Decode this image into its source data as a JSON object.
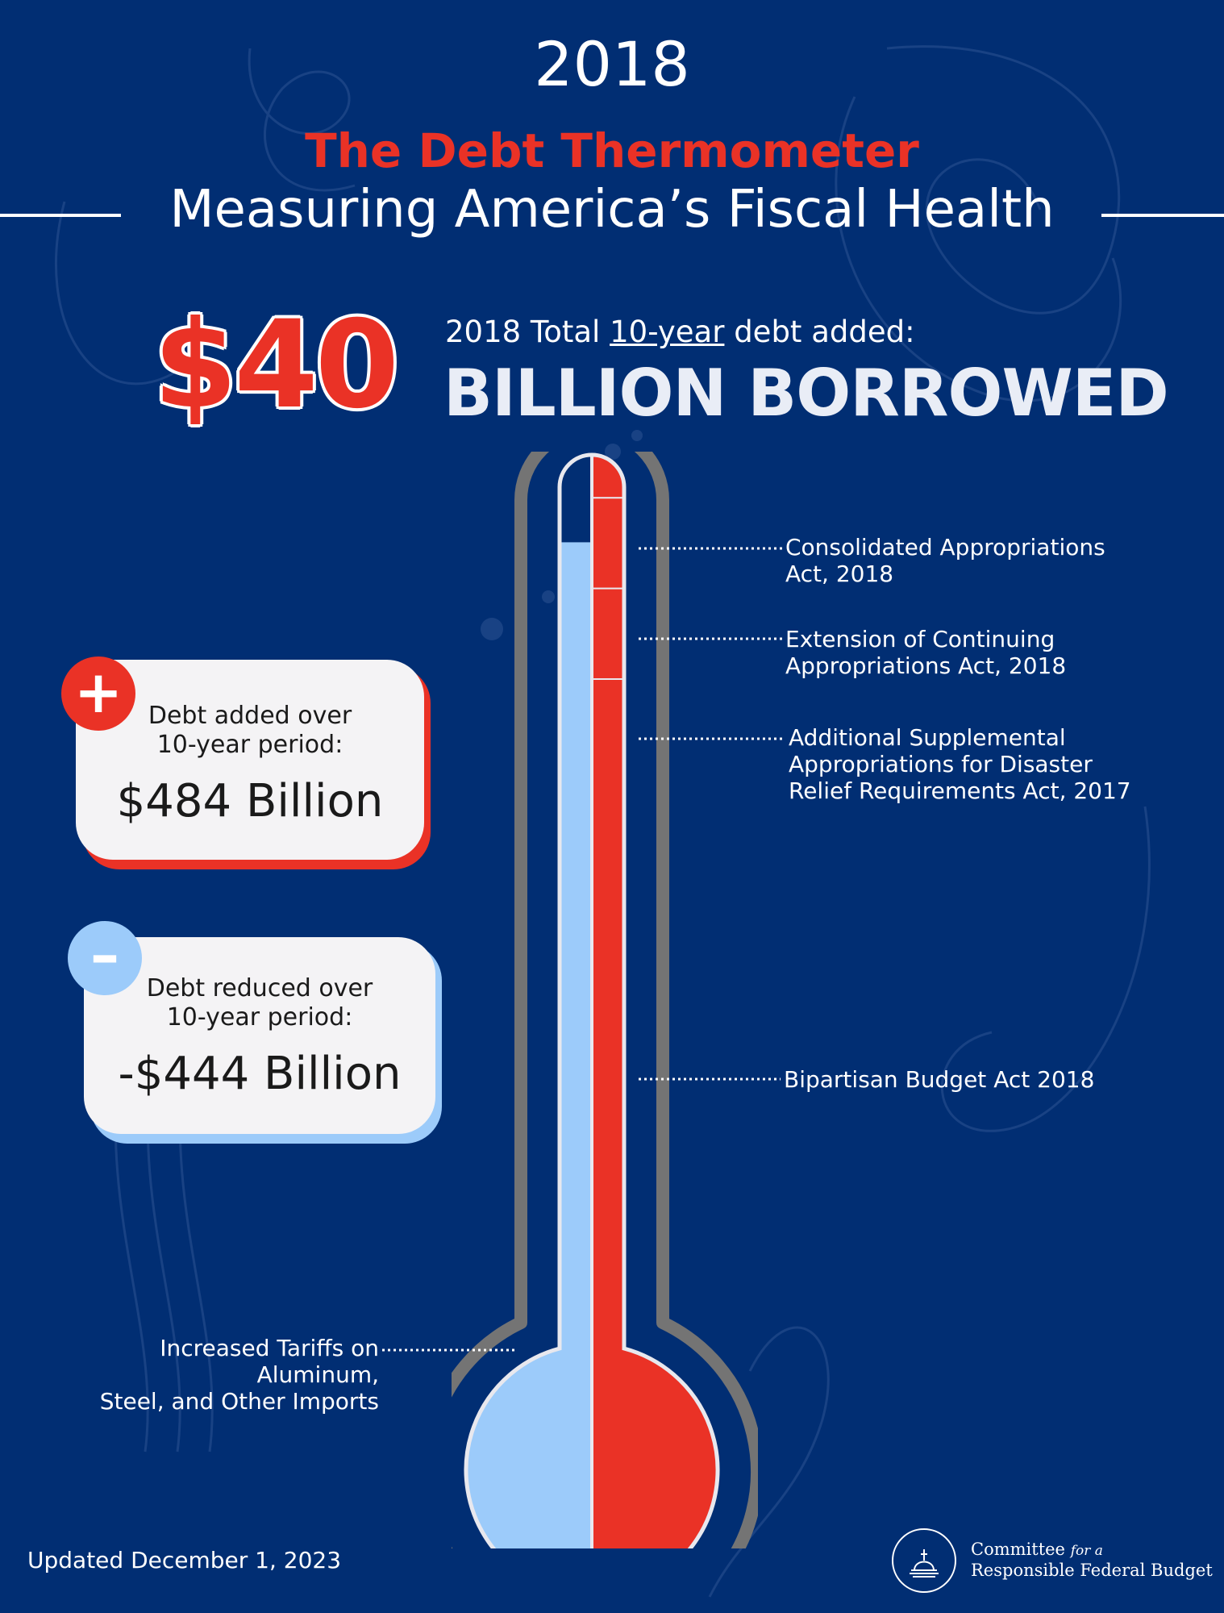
{
  "year": "2018",
  "title": "The Debt Thermometer",
  "subtitle": "Measuring America’s Fiscal Health",
  "headline": {
    "amount": "$40",
    "label_pre": "2018 Total ",
    "label_underlined": "10-year",
    "label_post": " debt added:",
    "borrowed": "BILLION BORROWED"
  },
  "added_card": {
    "badge": "+",
    "label_line1": "Debt added over",
    "label_line2": "10-year period:",
    "value": "$484 Billion"
  },
  "reduced_card": {
    "badge": "–",
    "label_line1": "Debt reduced over",
    "label_line2": "10-year period:",
    "value": "-$444 Billion"
  },
  "annotations": {
    "consolidated_line1": "Consolidated Appropriations",
    "consolidated_line2": "Act, 2018",
    "extension_line1": "Extension of Continuing",
    "extension_line2": "Appropriations Act, 2018",
    "supplemental_line1": "Additional Supplemental",
    "supplemental_line2": "Appropriations for Disaster",
    "supplemental_line3": "Relief Requirements Act, 2017",
    "bipartisan": "Bipartisan Budget Act 2018",
    "tariffs_line1": "Increased Tariffs on Aluminum,",
    "tariffs_line2": "Steel, and Other Imports"
  },
  "footer": {
    "updated": "Updated December 1, 2023",
    "org_line1": "Committee",
    "org_for_a": "for a",
    "org_line2": "Responsible Federal Budget"
  },
  "colors": {
    "background": "#012e73",
    "debt_added": "#ea3226",
    "debt_reduced": "#9ccbfa",
    "tube_outline": "#7a7a7a"
  },
  "chart_data": {
    "type": "bar",
    "units": "billions of dollars, 10-year",
    "series": [
      {
        "name": "Debt added over 10-year period:",
        "total": 484,
        "segments": [
          {
            "label": "Consolidated Appropriations Act, 2018",
            "value": 20
          },
          {
            "label": "Extension of Continuing Appropriations Act, 2018",
            "value": 40
          },
          {
            "label": "Additional Supplemental Appropriations for Disaster Relief Requirements Act, 2017",
            "value": 40
          },
          {
            "label": "Bipartisan Budget Act 2018",
            "value": 384
          }
        ]
      },
      {
        "name": "Debt reduced over 10-year period:",
        "total": -444,
        "segments": [
          {
            "label": "Increased Tariffs on Aluminum, Steel, and Other Imports",
            "value": -444
          }
        ]
      }
    ],
    "net": 40
  }
}
